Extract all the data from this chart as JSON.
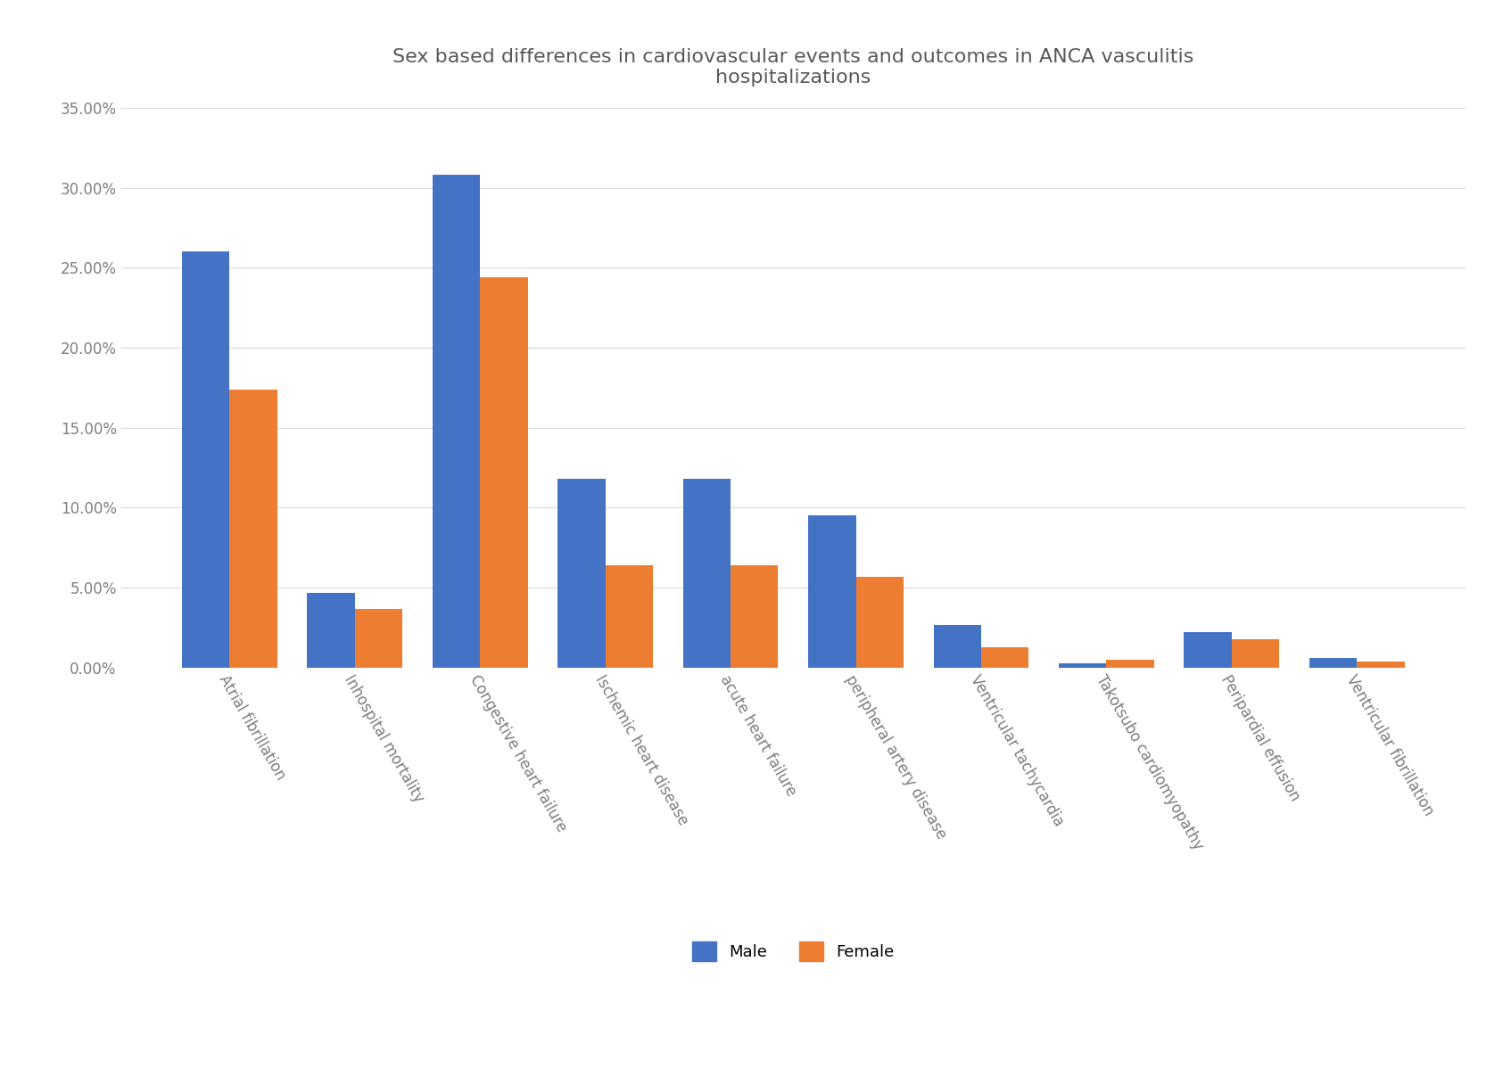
{
  "title": "Sex based differences in cardiovascular events and outcomes in ANCA vasculitis\nhospitalizations",
  "categories": [
    "Atrial fibrillation",
    "Inhospital mortality",
    "Congestive heart failure",
    "Ischemic heart disease",
    "acute heart failure",
    "peripheral artery disease",
    "Ventricular tachycardia",
    "Takotsubo cardiomyopathy",
    "Peripardial effusion",
    "Ventricular fibrillation"
  ],
  "male_values": [
    0.26,
    0.047,
    0.308,
    0.118,
    0.118,
    0.095,
    0.027,
    0.003,
    0.022,
    0.006
  ],
  "female_values": [
    0.174,
    0.037,
    0.244,
    0.064,
    0.064,
    0.057,
    0.013,
    0.005,
    0.018,
    0.004
  ],
  "male_color": "#4472C4",
  "female_color": "#ED7D31",
  "ylim": [
    0,
    0.35
  ],
  "yticks": [
    0.0,
    0.05,
    0.1,
    0.15,
    0.2,
    0.25,
    0.3,
    0.35
  ],
  "ytick_labels": [
    "0.00%",
    "5.00%",
    "10.00%",
    "15.00%",
    "20.00%",
    "25.00%",
    "30.00%",
    "35.00%"
  ],
  "legend_labels": [
    "Male",
    "Female"
  ],
  "background_color": "#ffffff",
  "grid_color": "#d9d9d9",
  "title_fontsize": 16,
  "tick_fontsize": 12,
  "legend_fontsize": 13,
  "bar_width": 0.38
}
